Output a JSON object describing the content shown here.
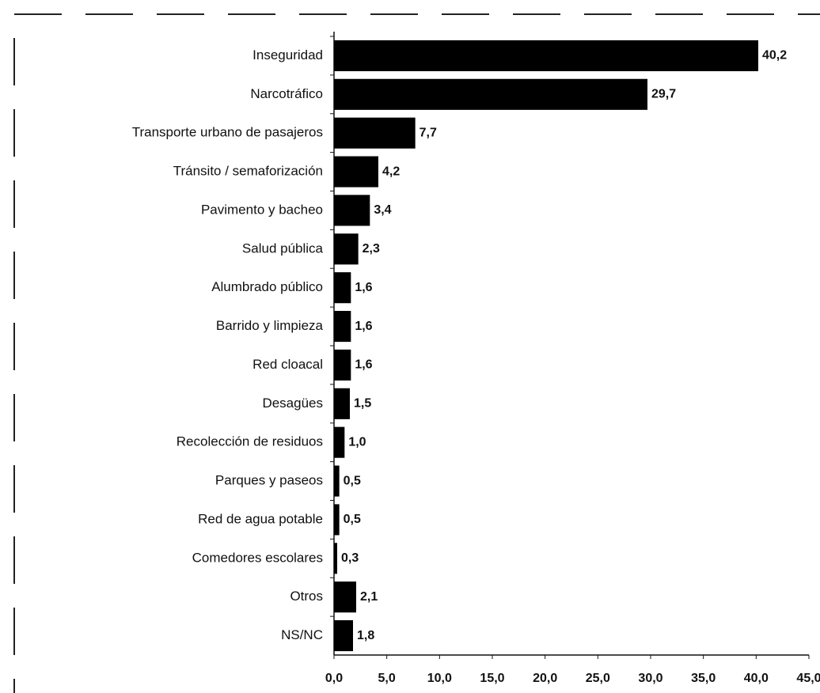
{
  "chart_data": {
    "type": "bar",
    "orientation": "horizontal",
    "categories": [
      "Inseguridad",
      "Narcotráfico",
      "Transporte urbano de pasajeros",
      "Tránsito / semaforización",
      "Pavimento y bacheo",
      "Salud pública",
      "Alumbrado público",
      "Barrido y limpieza",
      "Red cloacal",
      "Desagües",
      "Recolección de residuos",
      "Parques y paseos",
      "Red de agua potable",
      "Comedores escolares",
      "Otros",
      "NS/NC"
    ],
    "values": [
      40.2,
      29.7,
      7.7,
      4.2,
      3.4,
      2.3,
      1.6,
      1.6,
      1.6,
      1.5,
      1.0,
      0.5,
      0.5,
      0.3,
      2.1,
      1.8
    ],
    "value_labels": [
      "40,2",
      "29,7",
      "7,7",
      "4,2",
      "3,4",
      "2,3",
      "1,6",
      "1,6",
      "1,6",
      "1,5",
      "1,0",
      "0,5",
      "0,5",
      "0,3",
      "2,1",
      "1,8"
    ],
    "color": "#000000",
    "xlim": [
      0,
      45
    ],
    "xticks": [
      {
        "value": 0,
        "label": "0,0"
      },
      {
        "value": 5,
        "label": "5,0"
      },
      {
        "value": 10,
        "label": "10,0"
      },
      {
        "value": 15,
        "label": "15,0"
      },
      {
        "value": 20,
        "label": "20,0"
      },
      {
        "value": 25,
        "label": "25,0"
      },
      {
        "value": 30,
        "label": "30,0"
      },
      {
        "value": 35,
        "label": "35,0"
      },
      {
        "value": 40,
        "label": "40,0"
      },
      {
        "value": 45,
        "label": "45,0"
      }
    ],
    "grid": false
  }
}
